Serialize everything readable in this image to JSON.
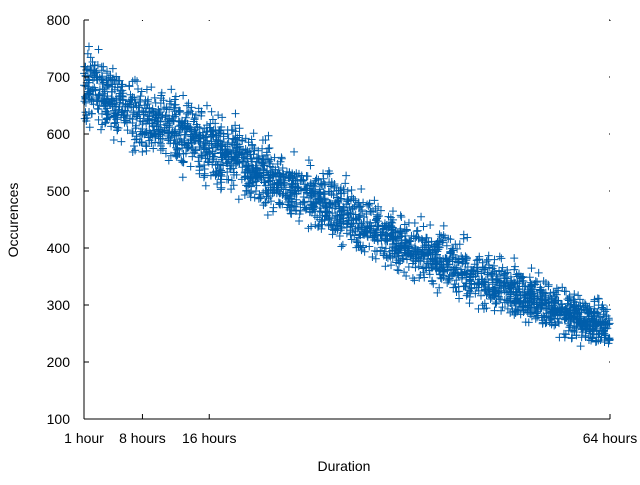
{
  "chart_data": {
    "type": "scatter",
    "title": "",
    "xlabel": "Duration",
    "ylabel": "Occurences",
    "ylim": [
      100,
      800
    ],
    "xlim": [
      1,
      64
    ],
    "x_unit": "hours",
    "y_ticks": [
      100,
      200,
      300,
      400,
      500,
      600,
      700,
      800
    ],
    "x_ticks": [
      {
        "value": 1,
        "label": "1 hour"
      },
      {
        "value": 8,
        "label": "8 hours"
      },
      {
        "value": 16,
        "label": "16 hours"
      },
      {
        "value": 64,
        "label": "64 hours"
      }
    ],
    "marker": "+",
    "color": "#005eab",
    "grid": false,
    "legend": "none",
    "trend_centerline": [
      {
        "x": 1,
        "y": 690
      },
      {
        "x": 8,
        "y": 625
      },
      {
        "x": 16,
        "y": 580
      },
      {
        "x": 24,
        "y": 520
      },
      {
        "x": 32,
        "y": 460
      },
      {
        "x": 40,
        "y": 400
      },
      {
        "x": 48,
        "y": 350
      },
      {
        "x": 56,
        "y": 305
      },
      {
        "x": 64,
        "y": 258
      }
    ],
    "band_halfwidth": [
      {
        "x": 1,
        "y": 55
      },
      {
        "x": 32,
        "y": 45
      },
      {
        "x": 64,
        "y": 35
      }
    ]
  }
}
